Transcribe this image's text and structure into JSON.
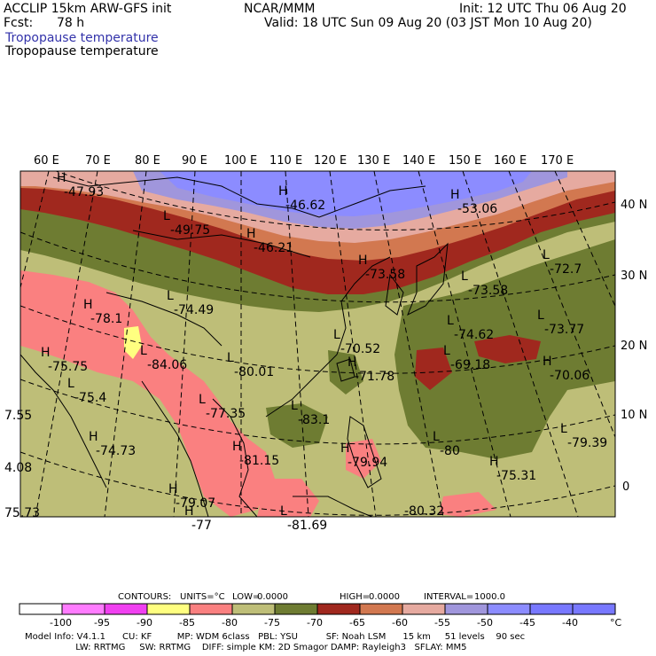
{
  "header": {
    "model": "ACCLIP 15km ARW-GFS init",
    "fcst_label": "Fcst:",
    "fcst_value": "78 h",
    "center": "NCAR/MMM",
    "init": "Init: 12 UTC Thu 06 Aug 20",
    "valid": "Valid: 18 UTC Sun 09 Aug 20 (03 JST Mon 10 Aug 20)",
    "field1": "Tropopause temperature",
    "field2": "Tropopause temperature"
  },
  "map": {
    "lon_labels": [
      "60 E",
      "70 E",
      "80 E",
      "90 E",
      "100 E",
      "110 E",
      "120 E",
      "130 E",
      "140 E",
      "150 E",
      "160 E",
      "170 E"
    ],
    "lat_labels": [
      "40 N",
      "30 N",
      "20 N",
      "10 N",
      "0"
    ],
    "colors": {
      "c_100_95": "#ff7cff",
      "c_95_90": "#f040f0",
      "c_90_85": "#ffff80",
      "c_85_80": "#fa8080",
      "c_80_75": "#bebe78",
      "c_75_70": "#6e7c32",
      "c_70_65": "#a0281e",
      "c_65_60": "#d27850",
      "c_60_55": "#e6aaa0",
      "c_55_50": "#a096dc",
      "c_50_45": "#8c8cff",
      "c_45_40": "#7878ff"
    },
    "extrema": [
      {
        "sym": "H",
        "val": "-47.93"
      },
      {
        "sym": "L",
        "val": "-49.75"
      },
      {
        "sym": "H",
        "val": "-46.62"
      },
      {
        "sym": "H",
        "val": "-46.21"
      },
      {
        "sym": "H",
        "val": "-53.06"
      },
      {
        "sym": "L",
        "val": "-72.7"
      },
      {
        "sym": "H",
        "val": "-78.1"
      },
      {
        "sym": "L",
        "val": "-74.49"
      },
      {
        "sym": "H",
        "val": "-73.58"
      },
      {
        "sym": "L",
        "val": "-73.58"
      },
      {
        "sym": "H",
        "val": "-75.75"
      },
      {
        "sym": "L",
        "val": "-84.06"
      },
      {
        "sym": "L",
        "val": "-80.01"
      },
      {
        "sym": "L",
        "val": "-70.52"
      },
      {
        "sym": "L",
        "val": "-74.62"
      },
      {
        "sym": "L",
        "val": "-73.77"
      },
      {
        "sym": "H",
        "val": "-71.78"
      },
      {
        "sym": "L",
        "val": "-69.18"
      },
      {
        "sym": "H",
        "val": "-70.06"
      },
      {
        "sym": "L",
        "val": "-75.4"
      },
      {
        "sym": "L",
        "val": "-77.35"
      },
      {
        "sym": "L",
        "val": "-83.1"
      },
      {
        "sym": "H",
        "val": "-74.73"
      },
      {
        "sym": "L",
        "val": "-79.39"
      },
      {
        "sym": "L",
        "val": "-80"
      },
      {
        "sym": "H",
        "val": "-81.15"
      },
      {
        "sym": "H",
        "val": "-79.94"
      },
      {
        "sym": "H",
        "val": "-75.31"
      },
      {
        "sym": "H",
        "val": "-79.07"
      },
      {
        "sym": "H",
        "val": "-77"
      },
      {
        "sym": "L",
        "val": "-81.69"
      },
      {
        "sym": "",
        "val": "-80.32"
      },
      {
        "sym": "",
        "val": "7.55"
      },
      {
        "sym": "",
        "val": "4.08"
      },
      {
        "sym": "",
        "val": "75.73"
      }
    ]
  },
  "contours": {
    "label": "CONTOURS:",
    "units": "UNITS=°C",
    "low_label": "LOW=",
    "low_value": "0.0000",
    "high_label": "HIGH=",
    "high_value": "0.0000",
    "interval_label": "INTERVAL=",
    "interval_value": "1000.0"
  },
  "colorbar": {
    "labels": [
      "-100",
      "-95",
      "-90",
      "-85",
      "-80",
      "-75",
      "-70",
      "-65",
      "-60",
      "-55",
      "-50",
      "-45",
      "-40"
    ],
    "unit": "°C"
  },
  "model_info": {
    "line1": "Model Info: V4.1.1      CU: KF         MP: WDM 6class   PBL: YSU          SF: Noah LSM      15 km     51 levels    90 sec",
    "line2": "                  LW: RRTMG     SW: RRTMG    DIFF: simple KM: 2D Smagor DAMP: Rayleigh3   SFLAY: MM5"
  }
}
